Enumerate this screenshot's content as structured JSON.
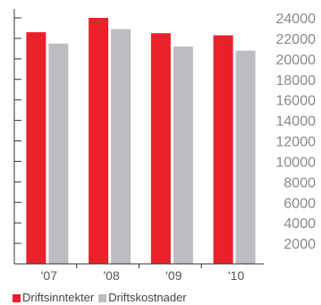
{
  "chart_data": {
    "type": "bar",
    "categories": [
      "'07",
      "'08",
      "'09",
      "'10"
    ],
    "series": [
      {
        "name": "Driftsinntekter",
        "color": "#e8212b",
        "values": [
          22600,
          24000,
          22500,
          22300
        ]
      },
      {
        "name": "Driftskostnader",
        "color": "#bcbdc0",
        "values": [
          21500,
          22900,
          21200,
          20800
        ]
      }
    ],
    "ylim": [
      0,
      24000
    ],
    "yticks": [
      2000,
      4000,
      6000,
      8000,
      10000,
      12000,
      14000,
      16000,
      18000,
      20000,
      22000,
      24000
    ],
    "xlabel": "",
    "ylabel": "",
    "grid": false,
    "legend_position": "bottom-left"
  },
  "colors": {
    "axis": "#333333",
    "tick_text": "#8a8a8a",
    "category_text": "#555555"
  }
}
